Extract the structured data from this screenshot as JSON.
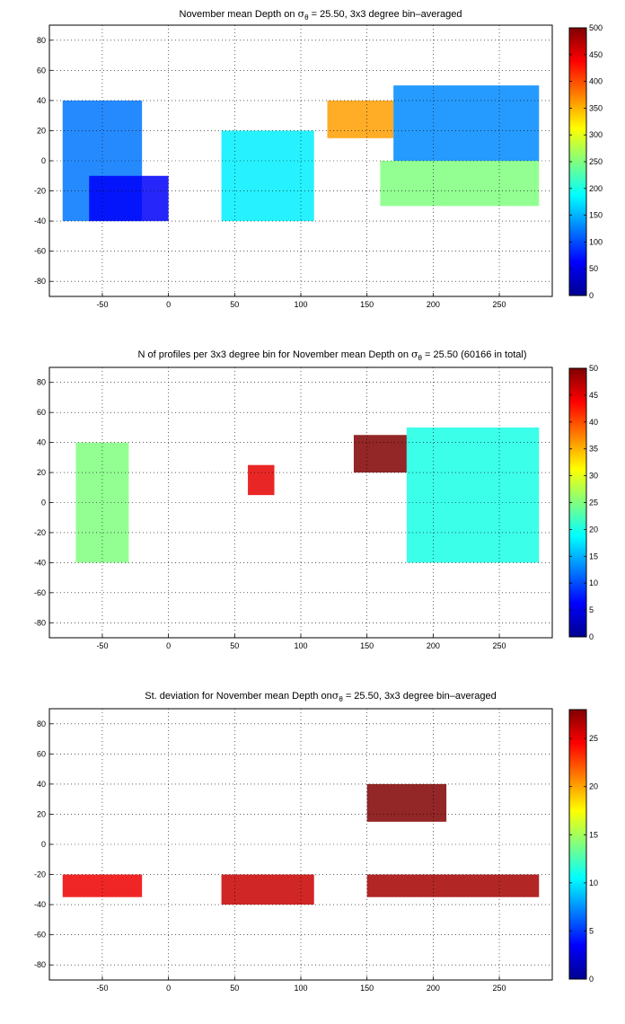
{
  "chart_data": [
    {
      "type": "heatmap",
      "title_parts": [
        "November mean Depth on ",
        "σ",
        "θ",
        " = 25.50, 3x3 degree bin–averaged"
      ],
      "xlim": [
        -90,
        290
      ],
      "ylim": [
        -90,
        90
      ],
      "x_ticks": [
        "-50",
        "0",
        "50",
        "100",
        "150",
        "200",
        "250"
      ],
      "y_ticks": [
        "80",
        "60",
        "40",
        "20",
        "0",
        "-20",
        "-40",
        "-60",
        "-80"
      ],
      "grid": true,
      "colormap": "jet",
      "clim": [
        0,
        500
      ],
      "colorbar_ticks": [
        "500",
        "450",
        "400",
        "350",
        "300",
        "250",
        "200",
        "150",
        "100",
        "50",
        "0"
      ],
      "colorbar_position": "right",
      "regions": [
        {
          "x": [
            -80,
            -20
          ],
          "y": [
            -40,
            40
          ],
          "value": 120
        },
        {
          "x": [
            -60,
            0
          ],
          "y": [
            -40,
            -10
          ],
          "value": 60
        },
        {
          "x": [
            40,
            110
          ],
          "y": [
            -40,
            20
          ],
          "value": 180
        },
        {
          "x": [
            120,
            170
          ],
          "y": [
            15,
            40
          ],
          "value": 360
        },
        {
          "x": [
            160,
            280
          ],
          "y": [
            -30,
            0
          ],
          "value": 250
        },
        {
          "x": [
            170,
            280
          ],
          "y": [
            0,
            50
          ],
          "value": 130
        }
      ]
    },
    {
      "type": "heatmap",
      "title_parts": [
        "N of profiles per 3x3 degree bin for November mean Depth on ",
        "σ",
        "θ",
        " = 25.50 (60166 in total)"
      ],
      "xlim": [
        -90,
        290
      ],
      "ylim": [
        -90,
        90
      ],
      "x_ticks": [
        "-50",
        "0",
        "50",
        "100",
        "150",
        "200",
        "250"
      ],
      "y_ticks": [
        "80",
        "60",
        "40",
        "20",
        "0",
        "-20",
        "-40",
        "-60",
        "-80"
      ],
      "grid": true,
      "colormap": "jet",
      "clim": [
        0,
        50
      ],
      "colorbar_ticks": [
        "50",
        "45",
        "40",
        "35",
        "30",
        "25",
        "20",
        "15",
        "10",
        "5",
        "0"
      ],
      "colorbar_position": "right",
      "regions": [
        {
          "x": [
            140,
            180
          ],
          "y": [
            20,
            45
          ],
          "value": 50
        },
        {
          "x": [
            60,
            80
          ],
          "y": [
            5,
            25
          ],
          "value": 45
        },
        {
          "x": [
            -70,
            -30
          ],
          "y": [
            -40,
            40
          ],
          "value": 25
        },
        {
          "x": [
            180,
            280
          ],
          "y": [
            -40,
            50
          ],
          "value": 20
        }
      ]
    },
    {
      "type": "heatmap",
      "title_parts": [
        "St. deviation for November mean Depth on",
        "σ",
        "θ",
        " = 25.50, 3x3 degree bin–averaged"
      ],
      "xlim": [
        -90,
        290
      ],
      "ylim": [
        -90,
        90
      ],
      "x_ticks": [
        "-50",
        "0",
        "50",
        "100",
        "150",
        "200",
        "250"
      ],
      "y_ticks": [
        "80",
        "60",
        "40",
        "20",
        "0",
        "-20",
        "-40",
        "-60",
        "-80"
      ],
      "grid": true,
      "colormap": "jet",
      "clim": [
        0,
        28
      ],
      "colorbar_ticks": [
        "25",
        "20",
        "15",
        "10",
        "5",
        "0"
      ],
      "colorbar_position": "right",
      "regions": [
        {
          "x": [
            150,
            210
          ],
          "y": [
            15,
            40
          ],
          "value": 28
        },
        {
          "x": [
            150,
            280
          ],
          "y": [
            -35,
            -20
          ],
          "value": 27
        },
        {
          "x": [
            -80,
            -20
          ],
          "y": [
            -35,
            -20
          ],
          "value": 25
        },
        {
          "x": [
            40,
            110
          ],
          "y": [
            -40,
            -20
          ],
          "value": 26
        }
      ]
    }
  ]
}
